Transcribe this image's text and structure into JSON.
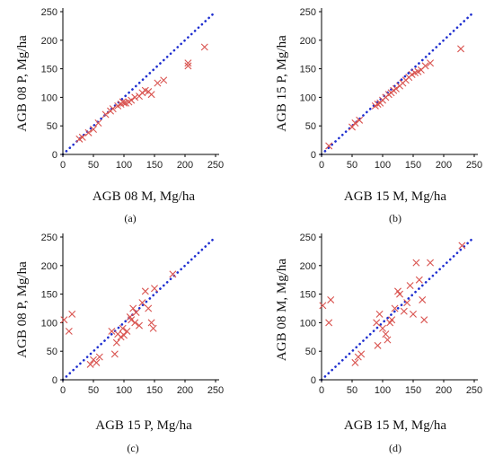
{
  "colors": {
    "marker": "#d9534f",
    "identity": "#1f2fd0",
    "axis": "#000000",
    "background": "#ffffff"
  },
  "chart_data": [
    {
      "type": "scatter",
      "caption": "(a)",
      "xlabel": "AGB 08 M, Mg/ha",
      "ylabel": "AGB 08 P, Mg/ha",
      "xlim": [
        0,
        250
      ],
      "ylim": [
        0,
        250
      ],
      "xticks": [
        "0",
        "50",
        "100",
        "150",
        "200",
        "250"
      ],
      "yticks": [
        "0",
        "50",
        "100",
        "150",
        "200",
        "250"
      ],
      "marker": "x",
      "identity_line": true,
      "points": [
        [
          27,
          27
        ],
        [
          32,
          30
        ],
        [
          42,
          38
        ],
        [
          50,
          44
        ],
        [
          58,
          55
        ],
        [
          70,
          70
        ],
        [
          78,
          76
        ],
        [
          82,
          80
        ],
        [
          90,
          85
        ],
        [
          95,
          88
        ],
        [
          98,
          92
        ],
        [
          100,
          90
        ],
        [
          103,
          90
        ],
        [
          108,
          92
        ],
        [
          112,
          95
        ],
        [
          118,
          100
        ],
        [
          125,
          102
        ],
        [
          130,
          108
        ],
        [
          135,
          112
        ],
        [
          140,
          110
        ],
        [
          145,
          105
        ],
        [
          155,
          125
        ],
        [
          165,
          130
        ],
        [
          205,
          155
        ],
        [
          205,
          160
        ],
        [
          232,
          188
        ]
      ]
    },
    {
      "type": "scatter",
      "caption": "(b)",
      "xlabel": "AGB 15  M, Mg/ha",
      "ylabel": "AGB 15 P, Mg/ha",
      "xlim": [
        0,
        250
      ],
      "ylim": [
        0,
        250
      ],
      "xticks": [
        "0",
        "50",
        "100",
        "150",
        "200",
        "250"
      ],
      "yticks": [
        "0",
        "50",
        "100",
        "150",
        "200",
        "250"
      ],
      "marker": "x",
      "identity_line": true,
      "points": [
        [
          12,
          15
        ],
        [
          50,
          48
        ],
        [
          55,
          55
        ],
        [
          62,
          60
        ],
        [
          88,
          85
        ],
        [
          92,
          88
        ],
        [
          96,
          90
        ],
        [
          100,
          95
        ],
        [
          105,
          100
        ],
        [
          110,
          105
        ],
        [
          114,
          108
        ],
        [
          118,
          112
        ],
        [
          122,
          115
        ],
        [
          128,
          120
        ],
        [
          133,
          125
        ],
        [
          138,
          130
        ],
        [
          143,
          135
        ],
        [
          148,
          140
        ],
        [
          153,
          143
        ],
        [
          158,
          145
        ],
        [
          163,
          148
        ],
        [
          170,
          155
        ],
        [
          178,
          160
        ],
        [
          228,
          185
        ]
      ]
    },
    {
      "type": "scatter",
      "caption": "(c)",
      "xlabel": "AGB 15 P, Mg/ha",
      "ylabel": "AGB 08 P, Mg/ha",
      "xlim": [
        0,
        250
      ],
      "ylim": [
        0,
        250
      ],
      "xticks": [
        "0",
        "50",
        "100",
        "150",
        "200",
        "250"
      ],
      "yticks": [
        "0",
        "50",
        "100",
        "150",
        "200",
        "250"
      ],
      "marker": "x",
      "identity_line": true,
      "points": [
        [
          2,
          105
        ],
        [
          10,
          85
        ],
        [
          15,
          115
        ],
        [
          45,
          27
        ],
        [
          50,
          35
        ],
        [
          55,
          30
        ],
        [
          60,
          40
        ],
        [
          80,
          85
        ],
        [
          85,
          45
        ],
        [
          88,
          65
        ],
        [
          90,
          80
        ],
        [
          95,
          75
        ],
        [
          98,
          90
        ],
        [
          100,
          78
        ],
        [
          105,
          85
        ],
        [
          110,
          110
        ],
        [
          112,
          105
        ],
        [
          115,
          125
        ],
        [
          118,
          100
        ],
        [
          120,
          118
        ],
        [
          125,
          95
        ],
        [
          130,
          135
        ],
        [
          135,
          155
        ],
        [
          140,
          125
        ],
        [
          145,
          100
        ],
        [
          148,
          90
        ],
        [
          150,
          160
        ],
        [
          180,
          185
        ]
      ]
    },
    {
      "type": "scatter",
      "caption": "(d)",
      "xlabel": "AGB 15 M, Mg/ha",
      "ylabel": "AGB 08 M, Mg/ha",
      "xlim": [
        0,
        250
      ],
      "ylim": [
        0,
        250
      ],
      "xticks": [
        "0",
        "50",
        "100",
        "150",
        "200",
        "250"
      ],
      "yticks": [
        "0",
        "50",
        "100",
        "150",
        "200",
        "250"
      ],
      "marker": "x",
      "identity_line": true,
      "points": [
        [
          2,
          130
        ],
        [
          12,
          100
        ],
        [
          15,
          140
        ],
        [
          55,
          30
        ],
        [
          60,
          40
        ],
        [
          65,
          45
        ],
        [
          90,
          100
        ],
        [
          92,
          60
        ],
        [
          95,
          115
        ],
        [
          100,
          90
        ],
        [
          105,
          80
        ],
        [
          108,
          70
        ],
        [
          112,
          100
        ],
        [
          115,
          105
        ],
        [
          120,
          125
        ],
        [
          125,
          155
        ],
        [
          128,
          150
        ],
        [
          135,
          120
        ],
        [
          140,
          135
        ],
        [
          145,
          165
        ],
        [
          150,
          115
        ],
        [
          155,
          205
        ],
        [
          160,
          175
        ],
        [
          165,
          140
        ],
        [
          168,
          105
        ],
        [
          178,
          205
        ],
        [
          230,
          235
        ]
      ]
    }
  ]
}
